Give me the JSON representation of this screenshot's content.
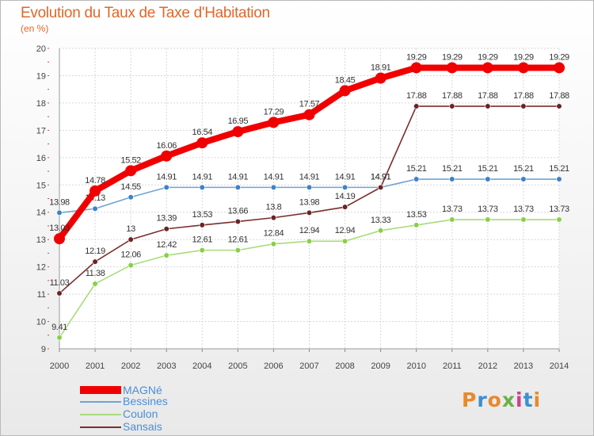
{
  "title": "Evolution du Taux de Taxe d'Habitation",
  "subtitle": "(en %)",
  "logo": {
    "text": "Proxiti",
    "colors": [
      "#e8892b",
      "#3d8fd1",
      "#e8892b",
      "#6ab04c",
      "#d23f8c",
      "#3d8fd1",
      "#e8892b"
    ]
  },
  "chart_data": {
    "type": "line",
    "x": [
      2000,
      2001,
      2002,
      2003,
      2004,
      2005,
      2006,
      2007,
      2008,
      2009,
      2010,
      2011,
      2012,
      2013,
      2014
    ],
    "ylim": [
      9,
      20
    ],
    "yticks": [
      9,
      10,
      11,
      12,
      13,
      14,
      15,
      16,
      17,
      18,
      19,
      20
    ],
    "grid": true,
    "legend_position": "bottom-left",
    "series": [
      {
        "name": "MAGNé",
        "color": "#f00000",
        "emphasis": true,
        "values": [
          13.03,
          14.78,
          15.52,
          16.06,
          16.54,
          16.95,
          17.29,
          17.57,
          18.45,
          18.91,
          19.29,
          19.29,
          19.29,
          19.29,
          19.29
        ],
        "labels": [
          "13.03",
          "14.78",
          "15.52",
          "16.06",
          "16.54",
          "16.95",
          "17.29",
          "17.57",
          "18.45",
          "18.91",
          "19.29",
          "19.29",
          "19.29",
          "19.29",
          "19.29"
        ]
      },
      {
        "name": "Bessines",
        "color": "#6fa4d2",
        "marker": "#3d82c9",
        "values": [
          13.98,
          14.13,
          14.55,
          14.91,
          14.91,
          14.91,
          14.91,
          14.91,
          14.91,
          14.91,
          15.21,
          15.21,
          15.21,
          15.21,
          15.21
        ],
        "labels": [
          "13.98",
          "14.13",
          "14.55",
          "14.91",
          "14.91",
          "14.91",
          "14.91",
          "14.91",
          "14.91",
          "14.91",
          "15.21",
          "15.21",
          "15.21",
          "15.21",
          "15.21"
        ]
      },
      {
        "name": "Coulon",
        "color": "#a8dc7a",
        "marker": "#88d046",
        "values": [
          9.41,
          11.38,
          12.06,
          12.42,
          12.61,
          12.61,
          12.84,
          12.94,
          12.94,
          13.33,
          13.53,
          13.73,
          13.73,
          13.73,
          13.73
        ],
        "labels": [
          "9.41",
          "11.38",
          "12.06",
          "12.42",
          "12.61",
          "12.61",
          "12.84",
          "12.94",
          "12.94",
          "13.33",
          "13.53",
          "13.73",
          "13.73",
          "13.73",
          "13.73"
        ]
      },
      {
        "name": "Sansais",
        "color": "#7a2e2e",
        "marker": "#6b2424",
        "values": [
          11.03,
          12.19,
          13,
          13.39,
          13.53,
          13.66,
          13.8,
          13.98,
          14.19,
          14.91,
          17.88,
          17.88,
          17.88,
          17.88,
          17.88
        ],
        "labels": [
          "11.03",
          "12.19",
          "13",
          "13.39",
          "13.53",
          "13.66",
          "13.8",
          "13.98",
          "14.19",
          "14.91",
          "17.88",
          "17.88",
          "17.88",
          "17.88",
          "17.88"
        ]
      }
    ]
  }
}
